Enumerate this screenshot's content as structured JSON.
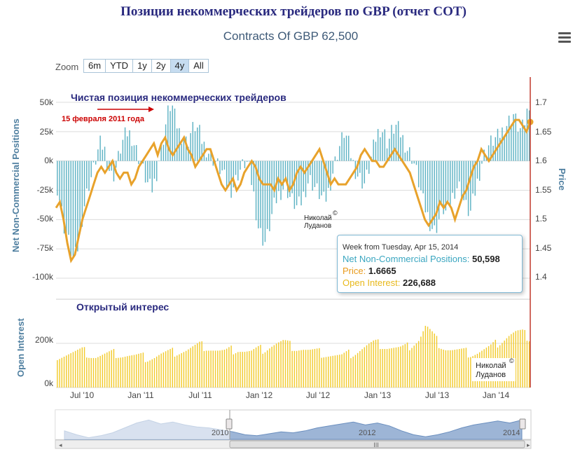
{
  "page_title": "Позиции некоммерческих трейдеров по GBP (отчет COT)",
  "chart_subtitle": "Contracts Of GBP 62,500",
  "zoom": {
    "label": "Zoom",
    "buttons": [
      "6m",
      "YTD",
      "1y",
      "2y",
      "4y",
      "All"
    ],
    "active": "4y"
  },
  "annotations": {
    "net_title": "Чистая позиция некоммерческих трейдеров",
    "arrow_label": "15 февраля 2011 года",
    "oi_title": "Открытый интерес",
    "watermark_1": [
      "Николай",
      "Луданов"
    ],
    "watermark_2": [
      "Николай",
      "Луданов"
    ],
    "copyright": "©"
  },
  "tooltip": {
    "header": "Week from Tuesday, Apr 15, 2014",
    "net_label": "Net Non-Commercial Positions",
    "net_value": "50,598",
    "price_label": "Price",
    "price_value": "1.6665",
    "oi_label": "Open Interest",
    "oi_value": "226,688"
  },
  "colors": {
    "net_bars": "#5fb3c4",
    "price_line": "#e8a22b",
    "oi_bars": "#f2cb2e",
    "navigator_fill": "#9db5d6",
    "cursor_line": "#c0392b",
    "title": "#2a2a7f",
    "annotation_red": "#cc0000"
  },
  "navigator": {
    "labels": [
      "2010",
      "2012",
      "2014"
    ],
    "scroll_grip": "III",
    "scroll_left": "◂",
    "scroll_right": "▸"
  },
  "chart_data": {
    "type": "bar",
    "x_tick_labels": [
      "Jul '10",
      "Jan '11",
      "Jul '11",
      "Jan '12",
      "Jul '12",
      "Jan '13",
      "Jul '13",
      "Jan '14"
    ],
    "x_range": [
      "2010-04",
      "2014-04"
    ],
    "series": [
      {
        "name": "Net Non-Commercial Positions",
        "type": "bar",
        "axis_label": "Net Non-Commercial Positions",
        "ylim": [
          -100000,
          50000
        ],
        "ticks": [
          "50k",
          "25k",
          "0k",
          "-25k",
          "-50k",
          "-75k",
          "-100k"
        ],
        "values": [
          -22000,
          -40000,
          -62000,
          -70000,
          -85000,
          -78000,
          -55000,
          -35000,
          -20000,
          -10000,
          5000,
          15000,
          10000,
          -5000,
          -15000,
          -5000,
          10000,
          20000,
          25000,
          20000,
          10000,
          0,
          -10000,
          -20000,
          -25000,
          -15000,
          5000,
          20000,
          40000,
          50000,
          35000,
          25000,
          20000,
          15000,
          25000,
          30000,
          25000,
          15000,
          10000,
          5000,
          0,
          -5000,
          -10000,
          -20000,
          -25000,
          -20000,
          -10000,
          -5000,
          0,
          -10000,
          -30000,
          -55000,
          -65000,
          -70000,
          -55000,
          -40000,
          -30000,
          -25000,
          -20000,
          -30000,
          -35000,
          -40000,
          -35000,
          -25000,
          -15000,
          -20000,
          -25000,
          -30000,
          -35000,
          -25000,
          -10000,
          5000,
          15000,
          25000,
          15000,
          0,
          -10000,
          -15000,
          -20000,
          -10000,
          5000,
          20000,
          28000,
          25000,
          15000,
          25000,
          30000,
          25000,
          18000,
          10000,
          5000,
          -5000,
          -20000,
          -35000,
          -45000,
          -55000,
          -60000,
          -50000,
          -40000,
          -45000,
          -35000,
          -25000,
          -20000,
          -30000,
          -40000,
          -45000,
          -30000,
          -15000,
          0,
          10000,
          15000,
          18000,
          20000,
          25000,
          30000,
          35000,
          40000,
          30000,
          25000,
          35000,
          50598
        ],
        "bar_count": 210,
        "unit": "contracts"
      },
      {
        "name": "Price",
        "type": "line",
        "axis_label": "Price",
        "ylim": [
          1.35,
          1.75
        ],
        "ticks": [
          "1.7",
          "1.65",
          "1.6",
          "1.55",
          "1.5",
          "1.45",
          "1.4"
        ],
        "values": [
          1.52,
          1.53,
          1.5,
          1.46,
          1.43,
          1.44,
          1.47,
          1.5,
          1.52,
          1.54,
          1.56,
          1.58,
          1.59,
          1.58,
          1.59,
          1.6,
          1.58,
          1.57,
          1.58,
          1.58,
          1.56,
          1.57,
          1.59,
          1.6,
          1.61,
          1.62,
          1.63,
          1.61,
          1.63,
          1.64,
          1.62,
          1.61,
          1.62,
          1.63,
          1.64,
          1.62,
          1.61,
          1.59,
          1.6,
          1.61,
          1.62,
          1.62,
          1.6,
          1.58,
          1.56,
          1.55,
          1.56,
          1.57,
          1.55,
          1.56,
          1.58,
          1.59,
          1.6,
          1.59,
          1.57,
          1.56,
          1.56,
          1.56,
          1.55,
          1.57,
          1.56,
          1.57,
          1.55,
          1.56,
          1.58,
          1.59,
          1.58,
          1.59,
          1.6,
          1.61,
          1.62,
          1.6,
          1.58,
          1.56,
          1.57,
          1.56,
          1.56,
          1.56,
          1.57,
          1.58,
          1.59,
          1.61,
          1.62,
          1.61,
          1.6,
          1.6,
          1.59,
          1.59,
          1.6,
          1.61,
          1.62,
          1.61,
          1.6,
          1.59,
          1.58,
          1.56,
          1.54,
          1.52,
          1.5,
          1.49,
          1.5,
          1.51,
          1.53,
          1.52,
          1.53,
          1.52,
          1.5,
          1.52,
          1.54,
          1.55,
          1.57,
          1.59,
          1.6,
          1.62,
          1.61,
          1.6,
          1.61,
          1.62,
          1.63,
          1.64,
          1.65,
          1.66,
          1.67,
          1.67,
          1.66,
          1.65,
          1.6665
        ]
      },
      {
        "name": "Open Interest",
        "type": "bar",
        "axis_label": "Open Interest",
        "ylim": [
          0,
          300000
        ],
        "ticks": [
          "200k",
          "0k"
        ],
        "values": [
          145000,
          150000,
          155000,
          160000,
          165000,
          150000,
          140000,
          145000,
          150000,
          155000,
          148000,
          145000,
          140000,
          138000,
          135000,
          140000,
          150000,
          155000,
          160000,
          165000,
          170000,
          180000,
          190000,
          185000,
          175000,
          165000,
          160000,
          170000,
          175000,
          165000,
          160000,
          170000,
          175000,
          190000,
          200000,
          205000,
          190000,
          180000,
          175000,
          165000,
          160000,
          155000,
          150000,
          145000,
          140000,
          150000,
          160000,
          175000,
          190000,
          200000,
          195000,
          185000,
          180000,
          175000,
          180000,
          200000,
          220000,
          280000,
          240000,
          200000,
          180000,
          170000,
          165000,
          160000,
          155000,
          160000,
          170000,
          180000,
          200000,
          220000,
          240000,
          250000,
          245000,
          226688
        ],
        "bar_count": 210,
        "unit": "contracts"
      }
    ],
    "highlight": {
      "label": "Apr 15, 2014",
      "net": 50598,
      "price": 1.6665,
      "open_interest": 226688
    }
  }
}
